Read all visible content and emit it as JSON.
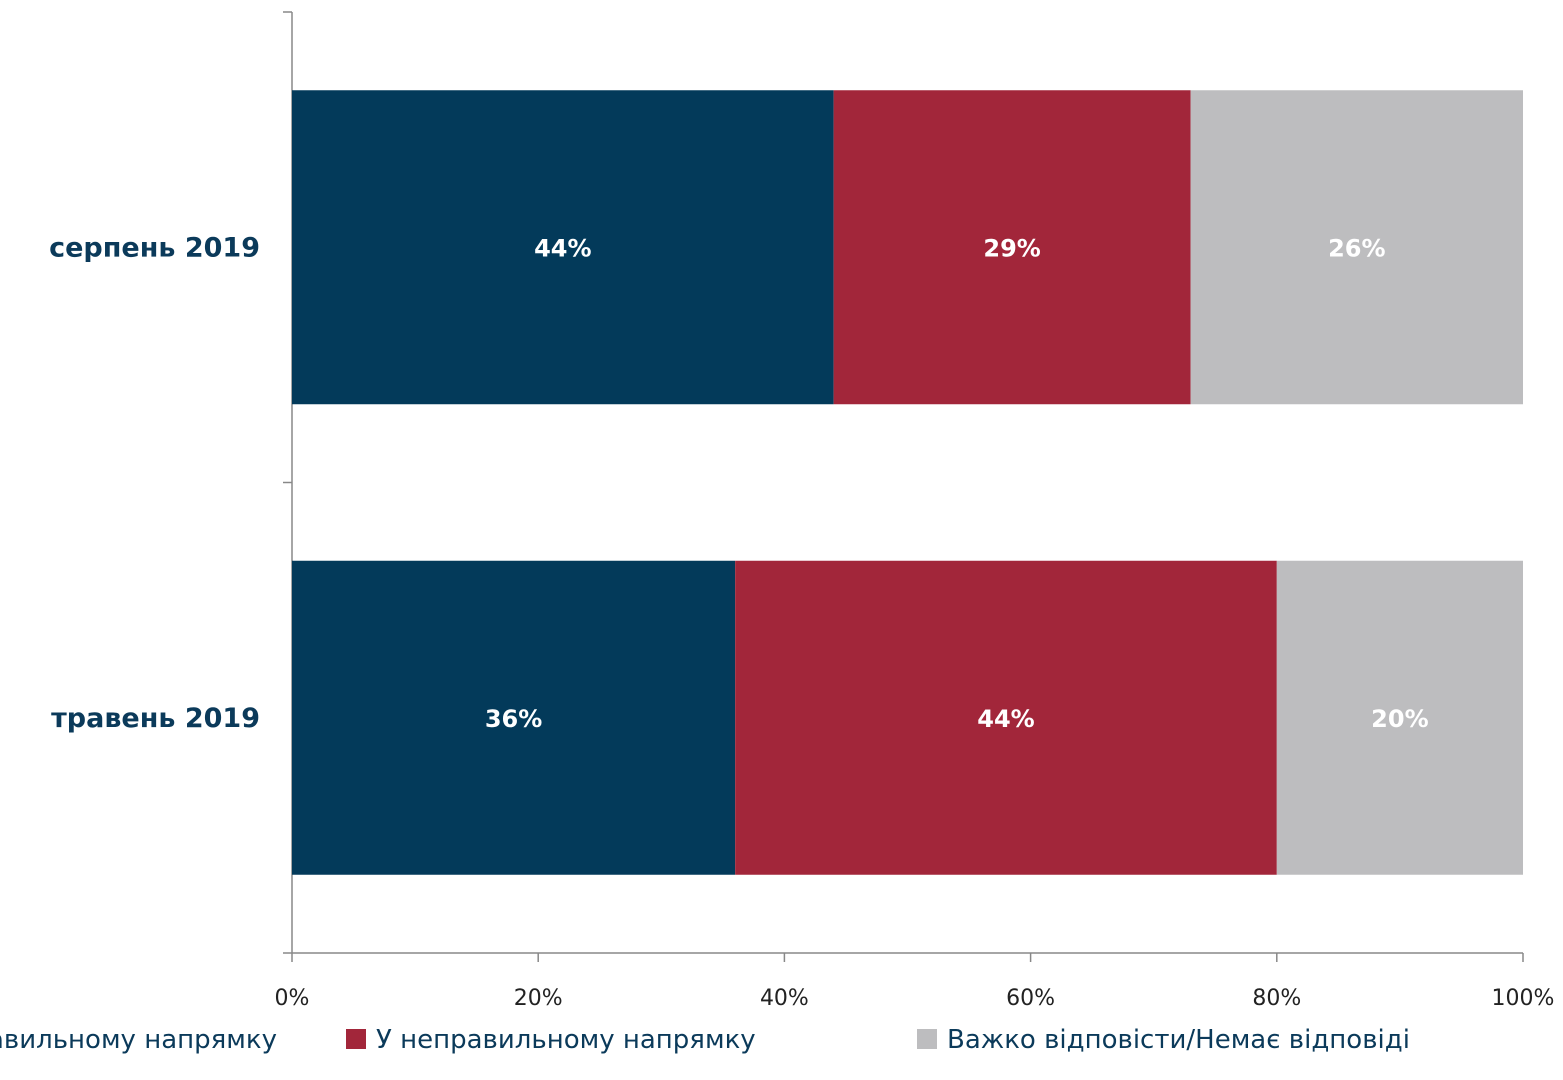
{
  "chart_data": {
    "type": "bar",
    "orientation": "horizontal",
    "stacked": true,
    "categories": [
      "серпень 2019",
      "травень 2019"
    ],
    "series": [
      {
        "name": "У правильному напрямку",
        "values": [
          44,
          36
        ],
        "labels": [
          "44%",
          "36%"
        ],
        "color": "#033a5a"
      },
      {
        "name": "У неправильному напрямку",
        "values": [
          29,
          44
        ],
        "labels": [
          "29%",
          "44%"
        ],
        "color": "#a2263a"
      },
      {
        "name": "Важко відповісти/Немає відповіді",
        "values": [
          26,
          20
        ],
        "labels": [
          "26%",
          "20%"
        ],
        "color": "#bdbdbf"
      }
    ],
    "xlim": [
      0,
      100
    ],
    "xticks": [
      "0%",
      "20%",
      "40%",
      "60%",
      "80%",
      "100%"
    ],
    "legend_position": "bottom",
    "grid": false
  }
}
